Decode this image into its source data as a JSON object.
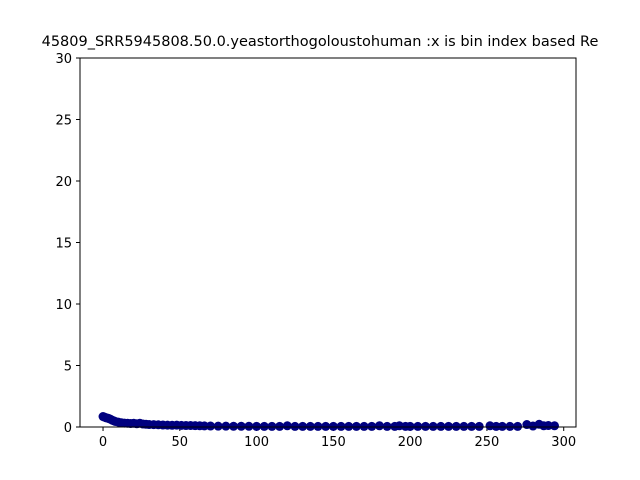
{
  "chart_data": {
    "type": "scatter",
    "title": "45809_SRR5945808.50.0.yeastorthogoloustohuman :x is bin index based Re",
    "xlabel": "",
    "ylabel": "",
    "xlim": [
      -15,
      308
    ],
    "ylim": [
      0,
      30
    ],
    "xticks": [
      0,
      50,
      100,
      150,
      200,
      250,
      300
    ],
    "yticks": [
      0,
      5,
      10,
      15,
      20,
      25,
      30
    ],
    "grid": false,
    "marker_color": "#00007f",
    "points": [
      {
        "x": 0,
        "y": 0.85
      },
      {
        "x": 1,
        "y": 0.8
      },
      {
        "x": 2,
        "y": 0.75
      },
      {
        "x": 3,
        "y": 0.72
      },
      {
        "x": 4,
        "y": 0.68
      },
      {
        "x": 5,
        "y": 0.62
      },
      {
        "x": 6,
        "y": 0.55
      },
      {
        "x": 7,
        "y": 0.5
      },
      {
        "x": 8,
        "y": 0.45
      },
      {
        "x": 10,
        "y": 0.4
      },
      {
        "x": 12,
        "y": 0.35
      },
      {
        "x": 14,
        "y": 0.32
      },
      {
        "x": 16,
        "y": 0.3
      },
      {
        "x": 18,
        "y": 0.28
      },
      {
        "x": 20,
        "y": 0.3
      },
      {
        "x": 22,
        "y": 0.26
      },
      {
        "x": 24,
        "y": 0.3
      },
      {
        "x": 26,
        "y": 0.24
      },
      {
        "x": 28,
        "y": 0.22
      },
      {
        "x": 30,
        "y": 0.2
      },
      {
        "x": 33,
        "y": 0.19
      },
      {
        "x": 36,
        "y": 0.18
      },
      {
        "x": 39,
        "y": 0.16
      },
      {
        "x": 42,
        "y": 0.15
      },
      {
        "x": 45,
        "y": 0.14
      },
      {
        "x": 48,
        "y": 0.15
      },
      {
        "x": 51,
        "y": 0.13
      },
      {
        "x": 54,
        "y": 0.12
      },
      {
        "x": 57,
        "y": 0.12
      },
      {
        "x": 60,
        "y": 0.11
      },
      {
        "x": 63,
        "y": 0.1
      },
      {
        "x": 66,
        "y": 0.09
      },
      {
        "x": 70,
        "y": 0.08
      },
      {
        "x": 75,
        "y": 0.07
      },
      {
        "x": 80,
        "y": 0.07
      },
      {
        "x": 85,
        "y": 0.06
      },
      {
        "x": 90,
        "y": 0.06
      },
      {
        "x": 95,
        "y": 0.06
      },
      {
        "x": 100,
        "y": 0.05
      },
      {
        "x": 105,
        "y": 0.05
      },
      {
        "x": 110,
        "y": 0.05
      },
      {
        "x": 115,
        "y": 0.05
      },
      {
        "x": 120,
        "y": 0.1
      },
      {
        "x": 125,
        "y": 0.05
      },
      {
        "x": 130,
        "y": 0.05
      },
      {
        "x": 135,
        "y": 0.05
      },
      {
        "x": 140,
        "y": 0.05
      },
      {
        "x": 145,
        "y": 0.05
      },
      {
        "x": 150,
        "y": 0.05
      },
      {
        "x": 155,
        "y": 0.05
      },
      {
        "x": 160,
        "y": 0.05
      },
      {
        "x": 165,
        "y": 0.05
      },
      {
        "x": 170,
        "y": 0.05
      },
      {
        "x": 175,
        "y": 0.05
      },
      {
        "x": 180,
        "y": 0.1
      },
      {
        "x": 185,
        "y": 0.05
      },
      {
        "x": 190,
        "y": 0.05
      },
      {
        "x": 193,
        "y": 0.1
      },
      {
        "x": 197,
        "y": 0.05
      },
      {
        "x": 200,
        "y": 0.05
      },
      {
        "x": 205,
        "y": 0.05
      },
      {
        "x": 210,
        "y": 0.05
      },
      {
        "x": 215,
        "y": 0.05
      },
      {
        "x": 220,
        "y": 0.05
      },
      {
        "x": 225,
        "y": 0.05
      },
      {
        "x": 230,
        "y": 0.05
      },
      {
        "x": 235,
        "y": 0.05
      },
      {
        "x": 240,
        "y": 0.05
      },
      {
        "x": 245,
        "y": 0.05
      },
      {
        "x": 252,
        "y": 0.1
      },
      {
        "x": 256,
        "y": 0.05
      },
      {
        "x": 260,
        "y": 0.05
      },
      {
        "x": 265,
        "y": 0.05
      },
      {
        "x": 270,
        "y": 0.05
      },
      {
        "x": 276,
        "y": 0.2
      },
      {
        "x": 280,
        "y": 0.08
      },
      {
        "x": 284,
        "y": 0.22
      },
      {
        "x": 287,
        "y": 0.1
      },
      {
        "x": 290,
        "y": 0.12
      },
      {
        "x": 294,
        "y": 0.1
      }
    ]
  }
}
